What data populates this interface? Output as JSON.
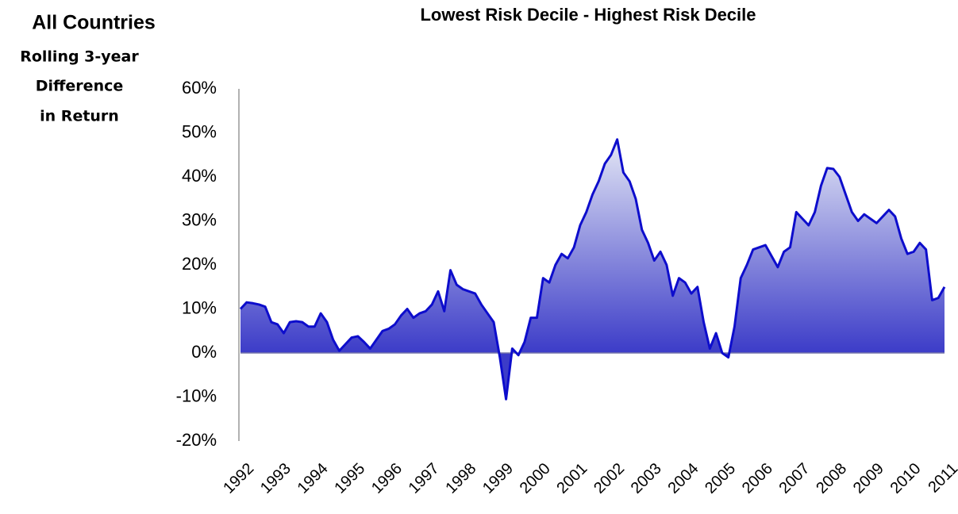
{
  "chart_data": {
    "type": "area",
    "title": "Lowest Risk Decile - Highest Risk Decile",
    "heading": "All Countries",
    "ylabel_lines": [
      "Rolling 3-year",
      "Difference",
      "in Return"
    ],
    "categories": [
      "1992",
      null,
      null,
      null,
      null,
      null,
      "1993",
      null,
      null,
      null,
      null,
      null,
      "1994",
      null,
      null,
      null,
      null,
      null,
      "1995",
      null,
      null,
      null,
      null,
      null,
      "1996",
      null,
      null,
      null,
      null,
      null,
      "1997",
      null,
      null,
      null,
      null,
      null,
      "1998",
      null,
      null,
      null,
      null,
      null,
      "1999",
      null,
      null,
      null,
      null,
      null,
      "2000",
      null,
      null,
      null,
      null,
      null,
      "2001",
      null,
      null,
      null,
      null,
      null,
      "2002",
      null,
      null,
      null,
      null,
      null,
      "2003",
      null,
      null,
      null,
      null,
      null,
      "2004",
      null,
      null,
      null,
      null,
      null,
      "2005",
      null,
      null,
      null,
      null,
      null,
      "2006",
      null,
      null,
      null,
      null,
      null,
      "2007",
      null,
      null,
      null,
      null,
      null,
      "2008",
      null,
      null,
      null,
      null,
      null,
      "2009",
      null,
      null,
      null,
      null,
      null,
      "2010",
      null,
      null,
      null,
      null,
      null,
      "2011"
    ],
    "series": [
      {
        "name": "Lowest Risk Decile - Highest Risk Decile",
        "color": "#0d0dcc",
        "values": [
          10,
          11.5,
          11.3,
          11,
          10.5,
          7,
          6.5,
          4.5,
          7,
          7.2,
          7,
          6,
          6,
          9,
          7,
          3,
          0.5,
          2,
          3.5,
          3.8,
          2.5,
          1,
          3,
          5,
          5.5,
          6.5,
          8.5,
          10,
          8,
          9,
          9.5,
          11,
          14,
          9.5,
          18.8,
          15.5,
          14.5,
          14,
          13.5,
          11,
          9,
          7,
          -1,
          -10.5,
          1,
          -0.5,
          2.5,
          8,
          8,
          17,
          16,
          20,
          22.5,
          21.5,
          24,
          29,
          32,
          36,
          39,
          43,
          45,
          48.5,
          41,
          39,
          35,
          28,
          25,
          21,
          23,
          20,
          13,
          17,
          16,
          13.5,
          15,
          7,
          1,
          4.5,
          0,
          -1,
          6,
          17,
          20,
          23.5,
          24,
          24.5,
          22,
          19.5,
          23,
          24,
          32,
          30.5,
          29,
          32,
          38,
          42,
          41.8,
          40,
          36,
          32,
          30,
          31.5,
          30.5,
          29.5,
          31,
          32.5,
          31,
          26,
          22.5,
          23,
          25,
          23.5,
          12,
          12.5,
          15
        ]
      }
    ],
    "ylim": [
      -20,
      60
    ],
    "yticks": [
      {
        "value": -20,
        "label": "-20%"
      },
      {
        "value": -10,
        "label": "-10%"
      },
      {
        "value": 0,
        "label": "0%"
      },
      {
        "value": 10,
        "label": "10%"
      },
      {
        "value": 20,
        "label": "20%"
      },
      {
        "value": 30,
        "label": "30%"
      },
      {
        "value": 40,
        "label": "40%"
      },
      {
        "value": 50,
        "label": "50%"
      },
      {
        "value": 60,
        "label": "60%"
      }
    ],
    "grid": false
  }
}
